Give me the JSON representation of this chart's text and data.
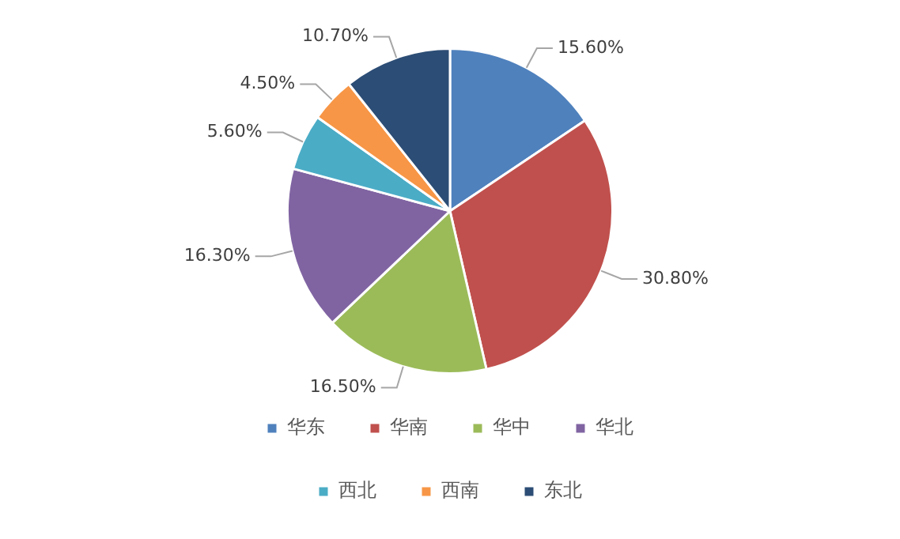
{
  "chart_data": {
    "type": "pie",
    "categories": [
      "华东",
      "华南",
      "华中",
      "华北",
      "西北",
      "西南",
      "东北"
    ],
    "values": [
      15.6,
      30.8,
      16.5,
      16.3,
      5.6,
      4.5,
      10.7
    ],
    "value_labels": [
      "15.60%",
      "30.80%",
      "16.50%",
      "16.30%",
      "5.60%",
      "4.50%",
      "10.70%"
    ],
    "colors": [
      "#4f81bd",
      "#c0504d",
      "#9bbb59",
      "#8064a2",
      "#4bacc6",
      "#f79646",
      "#2c4d75"
    ],
    "legend": "bottom"
  }
}
